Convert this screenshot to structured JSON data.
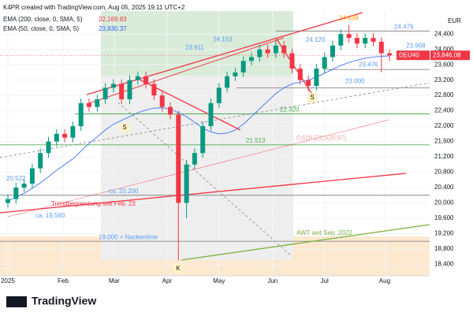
{
  "chart_data": {
    "type": "candlestick",
    "header": "K4PR created with TradingView.com, Aug 05, 2025 19:11 UTC+2",
    "indicators": [
      {
        "name": "EMA (200, close, 0, SMA, 5)",
        "label": "22,169.83",
        "color": "#f23645"
      },
      {
        "name": "EMA (50, close, 0, SMA, 5)",
        "label": "23,830.37",
        "color": "#2962ff"
      }
    ],
    "currency": "EUR",
    "symbol": "DEU40",
    "last": {
      "value": 23846.08,
      "label": "23,846.08"
    },
    "open": [
      20000,
      20100,
      20400,
      20500,
      20900,
      21300,
      21600,
      21800,
      21700,
      22000,
      22600,
      22500,
      22700,
      23000,
      23100,
      22700,
      23200,
      23300,
      23100,
      22800,
      22500,
      22300,
      20000,
      21000,
      21300,
      22000,
      22600,
      23000,
      23300,
      23400,
      23700,
      23800,
      24000,
      23900,
      24100,
      23900,
      23500,
      23200,
      23050,
      23500,
      23800,
      24100,
      24400,
      24300,
      24150,
      24300,
      24200,
      23900
    ],
    "high": [
      20220,
      20520,
      20620,
      21020,
      21420,
      21720,
      21920,
      21920,
      22120,
      22720,
      22720,
      22820,
      23120,
      23220,
      23220,
      23320,
      23420,
      23420,
      23220,
      22920,
      22620,
      22400,
      21120,
      21420,
      22120,
      22720,
      23120,
      23420,
      23520,
      23820,
      23920,
      24120,
      24120,
      24220,
      24220,
      24020,
      23620,
      23320,
      23620,
      23920,
      24220,
      24520,
      24639,
      24420,
      24420,
      24420,
      24320,
      24000
    ],
    "low": [
      19880,
      19980,
      20280,
      20380,
      20780,
      21180,
      21480,
      21580,
      21580,
      21880,
      22380,
      22380,
      22580,
      22880,
      22580,
      22580,
      23080,
      22980,
      22680,
      22380,
      22180,
      18500,
      19600,
      20880,
      21180,
      21880,
      22480,
      22880,
      23180,
      23280,
      23580,
      23680,
      23780,
      23780,
      23780,
      23380,
      23080,
      22900,
      22930,
      23380,
      23680,
      23980,
      24180,
      24030,
      24030,
      24080,
      23400,
      23700
    ],
    "close": [
      20100,
      20400,
      20500,
      20900,
      21300,
      21600,
      21800,
      21700,
      22000,
      22600,
      22500,
      22700,
      23000,
      23100,
      22700,
      23200,
      23300,
      23100,
      22800,
      22500,
      22300,
      20000,
      21000,
      21300,
      22000,
      22600,
      23000,
      23300,
      23400,
      23700,
      23800,
      24000,
      23900,
      24100,
      23900,
      23500,
      23200,
      23050,
      23500,
      23800,
      24100,
      24400,
      24300,
      24150,
      24300,
      24200,
      23900,
      23846.08
    ],
    "up_color": "#089981",
    "down_color": "#f23645",
    "series": [
      {
        "name": "EMA 200",
        "color": "#f23645",
        "values": [
          19640,
          19694,
          19748,
          19801,
          19855,
          19909,
          19963,
          20017,
          20070,
          20124,
          20178,
          20232,
          20286,
          20339,
          20393,
          20447,
          20501,
          20555,
          20608,
          20662,
          20716,
          20770,
          20824,
          20877,
          20931,
          20985,
          21039,
          21093,
          21146,
          21200,
          21254,
          21308,
          21362,
          21415,
          21469,
          21523,
          21577,
          21631,
          21684,
          21738,
          21792,
          21846,
          21900,
          21953,
          22007,
          22061,
          22115,
          22169.83
        ]
      },
      {
        "name": "EMA 50",
        "color": "#2962ff",
        "values": [
          20050,
          20150,
          20250,
          20380,
          20520,
          20680,
          20850,
          21000,
          21150,
          21350,
          21550,
          21720,
          21900,
          22050,
          22150,
          22250,
          22350,
          22420,
          22470,
          22480,
          22450,
          22350,
          22250,
          22100,
          21950,
          21850,
          21800,
          21820,
          21900,
          22050,
          22250,
          22450,
          22650,
          22850,
          23000,
          23100,
          23150,
          23200,
          23280,
          23380,
          23480,
          23580,
          23660,
          23720,
          23770,
          23800,
          23820,
          23830.37
        ]
      }
    ],
    "ylim": [
      18100,
      25000
    ],
    "yticks": [
      {
        "value": 18400,
        "label": "18,400"
      },
      {
        "value": 18800,
        "label": "18,800"
      },
      {
        "value": 19200,
        "label": "19,200"
      },
      {
        "value": 19600,
        "label": "19,600"
      },
      {
        "value": 20000,
        "label": "20,000"
      },
      {
        "value": 20400,
        "label": "20,400"
      },
      {
        "value": 20800,
        "label": "20,800"
      },
      {
        "value": 21200,
        "label": "21,200"
      },
      {
        "value": 21600,
        "label": "21,600"
      },
      {
        "value": 22000,
        "label": "22,000"
      },
      {
        "value": 22400,
        "label": "22,400"
      },
      {
        "value": 22800,
        "label": "22,800"
      },
      {
        "value": 23200,
        "label": "23,200"
      },
      {
        "value": 23600,
        "label": "23,600"
      },
      {
        "value": 24000,
        "label": "24,000"
      },
      {
        "value": 24400,
        "label": "24,400"
      }
    ],
    "xticks": [
      {
        "value": 0,
        "label": "2025"
      },
      {
        "value": 6.8,
        "label": "Feb"
      },
      {
        "value": 13.1,
        "label": "Mar"
      },
      {
        "value": 19.6,
        "label": "Apr"
      },
      {
        "value": 26,
        "label": "May"
      },
      {
        "value": 32.6,
        "label": "Jun"
      },
      {
        "value": 39,
        "label": "Jul"
      },
      {
        "value": 46.4,
        "label": "Aug"
      }
    ],
    "levels": [
      {
        "value": 24479,
        "label": "24.479",
        "color": "#5b9cf6"
      },
      {
        "value": 23968,
        "label": "23.968",
        "color": "#5b9cf6"
      },
      {
        "value": 23476,
        "label": "23.476",
        "color": "#5b9cf6"
      },
      {
        "value": 23000,
        "label": "23.000",
        "color": "#5b9cf6"
      },
      {
        "value": 22320,
        "label": "22.320",
        "color": "#4caf50"
      },
      {
        "value": 21513,
        "label": "21.513",
        "color": "#4caf50"
      },
      {
        "value": 21520.97,
        "label": "0.618 (21,520.97)",
        "color": "#f7a1a1"
      },
      {
        "value": 20522,
        "label": "20.522",
        "color": "#5b9cf6"
      },
      {
        "value": 20200,
        "label": "ca. 20.200",
        "color": "#5b9cf6"
      },
      {
        "value": 19560,
        "label": "ca. 19.560",
        "color": "#5b9cf6"
      },
      {
        "value": 19000,
        "label": "19.000 = Nackenlinie",
        "color": "#5b9cf6"
      },
      {
        "value": 24639,
        "label": "24.639",
        "color": "#ff9800"
      },
      {
        "value": 24153,
        "label": "24.153",
        "color": "#5b9cf6"
      },
      {
        "value": 23911,
        "label": "23.911",
        "color": "#5b9cf6"
      },
      {
        "value": 24120,
        "label": "24.120",
        "color": "#5b9cf6"
      }
    ],
    "annotations": [
      "Trendbegrenzung seit Feb. 23",
      "AWT seit Sep. 2022",
      "S",
      "S",
      "K"
    ],
    "footer": "TradingView"
  }
}
